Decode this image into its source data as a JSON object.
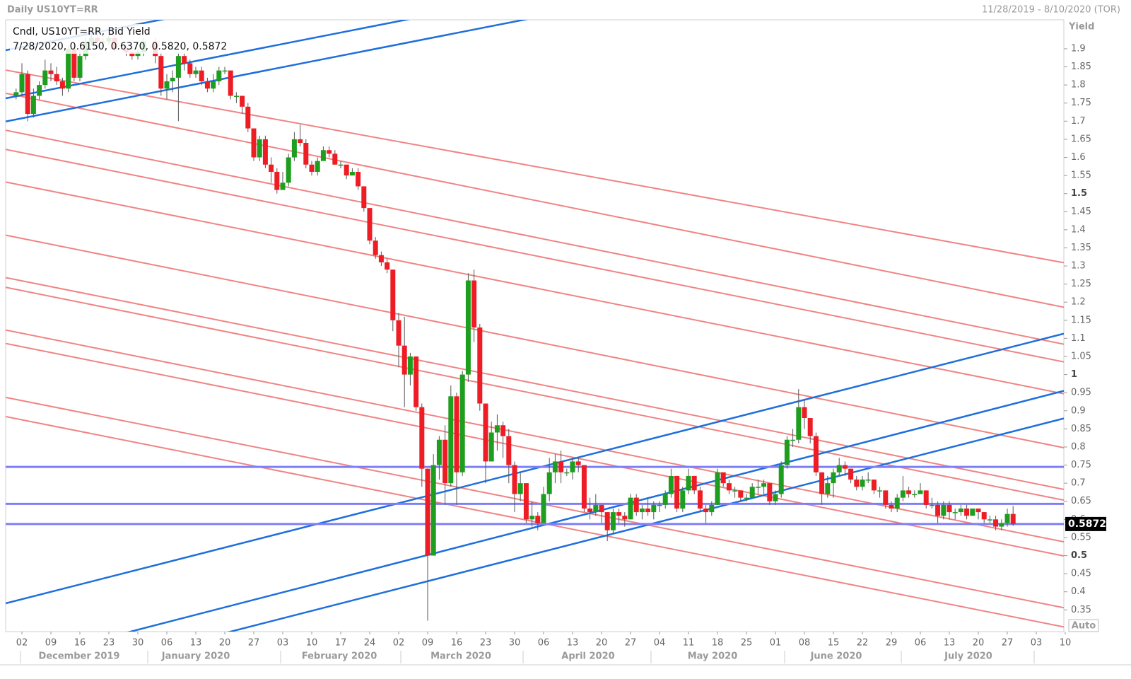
{
  "chart_data": {
    "type": "candlestick",
    "title": "Daily US10YT=RR",
    "date_range": "11/28/2019 - 8/10/2020 (TOR)",
    "legend_title": "Cndl, US10YT=RR, Bid Yield",
    "legend_values": "7/28/2020, 0.6150, 0.6370, 0.5820, 0.5872",
    "y_label": "Yield",
    "scale_mode": "Auto",
    "ylim": [
      0.29,
      1.98
    ],
    "yticks": [
      1.9,
      1.85,
      1.8,
      1.75,
      1.7,
      1.65,
      1.6,
      1.55,
      1.5,
      1.45,
      1.4,
      1.35,
      1.3,
      1.25,
      1.2,
      1.15,
      1.1,
      1.05,
      1,
      0.95,
      0.9,
      0.85,
      0.8,
      0.75,
      0.7,
      0.65,
      0.6,
      0.55,
      0.5,
      0.45,
      0.4,
      0.35
    ],
    "x_day_labels": [
      "02",
      "09",
      "16",
      "23",
      "30",
      "06",
      "13",
      "20",
      "27",
      "03",
      "10",
      "17",
      "24",
      "02",
      "09",
      "16",
      "23",
      "30",
      "06",
      "13",
      "20",
      "27",
      "04",
      "11",
      "18",
      "25",
      "01",
      "08",
      "15",
      "22",
      "29",
      "06",
      "13",
      "20",
      "27",
      "03",
      "10"
    ],
    "x_month_labels": [
      "December 2019",
      "January 2020",
      "February 2020",
      "March 2020",
      "April 2020",
      "May 2020",
      "June 2020",
      "July 2020"
    ],
    "up_color": "#1e9e1e",
    "down_color": "#ee1c25",
    "ohlc": [
      [
        1.77,
        1.79,
        1.76,
        1.78
      ],
      [
        1.78,
        1.86,
        1.77,
        1.83
      ],
      [
        1.83,
        1.84,
        1.7,
        1.72
      ],
      [
        1.72,
        1.79,
        1.71,
        1.77
      ],
      [
        1.77,
        1.81,
        1.76,
        1.8
      ],
      [
        1.8,
        1.87,
        1.79,
        1.84
      ],
      [
        1.84,
        1.86,
        1.81,
        1.83
      ],
      [
        1.83,
        1.85,
        1.8,
        1.81
      ],
      [
        1.81,
        1.82,
        1.77,
        1.79
      ],
      [
        1.79,
        1.91,
        1.78,
        1.9
      ],
      [
        1.9,
        1.91,
        1.81,
        1.82
      ],
      [
        1.82,
        1.9,
        1.81,
        1.88
      ],
      [
        1.88,
        1.93,
        1.87,
        1.92
      ],
      [
        1.92,
        1.94,
        1.91,
        1.93
      ],
      [
        1.93,
        1.94,
        1.9,
        1.92
      ],
      [
        1.92,
        1.93,
        1.9,
        1.92
      ],
      [
        1.92,
        1.94,
        1.91,
        1.93
      ],
      [
        1.93,
        1.94,
        1.89,
        1.9
      ],
      null,
      [
        1.9,
        1.91,
        1.88,
        1.89
      ],
      [
        1.89,
        1.91,
        1.87,
        1.88
      ],
      [
        1.88,
        1.9,
        1.87,
        1.89
      ],
      [
        1.89,
        1.93,
        1.88,
        1.92
      ],
      null,
      [
        1.92,
        1.93,
        1.86,
        1.88
      ],
      [
        1.88,
        1.89,
        1.77,
        1.79
      ],
      [
        1.79,
        1.83,
        1.76,
        1.81
      ],
      [
        1.81,
        1.84,
        1.78,
        1.82
      ],
      [
        1.82,
        1.89,
        1.7,
        1.88
      ],
      [
        1.88,
        1.89,
        1.84,
        1.86
      ],
      [
        1.86,
        1.87,
        1.82,
        1.83
      ],
      [
        1.83,
        1.85,
        1.82,
        1.84
      ],
      [
        1.84,
        1.85,
        1.8,
        1.81
      ],
      [
        1.81,
        1.82,
        1.78,
        1.79
      ],
      [
        1.79,
        1.83,
        1.78,
        1.81
      ],
      [
        1.81,
        1.85,
        1.8,
        1.84
      ],
      [
        1.84,
        1.85,
        1.83,
        1.84
      ],
      [
        1.84,
        1.84,
        1.76,
        1.77
      ],
      [
        1.77,
        1.78,
        1.75,
        1.77
      ],
      [
        1.77,
        1.77,
        1.72,
        1.74
      ],
      [
        1.74,
        1.75,
        1.67,
        1.68
      ],
      [
        1.68,
        1.68,
        1.59,
        1.6
      ],
      [
        1.6,
        1.66,
        1.59,
        1.65
      ],
      [
        1.65,
        1.66,
        1.57,
        1.58
      ],
      [
        1.58,
        1.6,
        1.53,
        1.56
      ],
      [
        1.56,
        1.57,
        1.5,
        1.51
      ],
      [
        1.51,
        1.56,
        1.51,
        1.53
      ],
      [
        1.53,
        1.61,
        1.52,
        1.6
      ],
      [
        1.6,
        1.67,
        1.59,
        1.65
      ],
      [
        1.65,
        1.69,
        1.63,
        1.64
      ],
      [
        1.64,
        1.65,
        1.57,
        1.58
      ],
      [
        1.58,
        1.59,
        1.55,
        1.56
      ],
      [
        1.56,
        1.6,
        1.55,
        1.59
      ],
      [
        1.59,
        1.63,
        1.59,
        1.62
      ],
      [
        1.62,
        1.63,
        1.6,
        1.61
      ],
      [
        1.61,
        1.62,
        1.58,
        1.58
      ],
      [
        1.58,
        1.59,
        1.57,
        1.58
      ],
      [
        1.58,
        1.58,
        1.54,
        1.55
      ],
      [
        1.55,
        1.57,
        1.55,
        1.56
      ],
      [
        1.56,
        1.57,
        1.51,
        1.52
      ],
      [
        1.52,
        1.52,
        1.45,
        1.46
      ],
      [
        1.46,
        1.46,
        1.36,
        1.37
      ],
      [
        1.37,
        1.38,
        1.32,
        1.33
      ],
      [
        1.33,
        1.34,
        1.3,
        1.31
      ],
      [
        1.31,
        1.32,
        1.28,
        1.29
      ],
      [
        1.29,
        1.29,
        1.12,
        1.15
      ],
      [
        1.15,
        1.17,
        1.02,
        1.08
      ],
      [
        1.08,
        1.16,
        0.91,
        1.0
      ],
      [
        1.0,
        1.06,
        0.97,
        1.05
      ],
      [
        1.05,
        1.05,
        0.9,
        0.91
      ],
      [
        0.91,
        0.92,
        0.69,
        0.74
      ],
      [
        0.74,
        0.74,
        0.32,
        0.5
      ],
      [
        0.5,
        0.78,
        0.56,
        0.75
      ],
      [
        0.75,
        0.83,
        0.71,
        0.82
      ],
      [
        0.82,
        0.86,
        0.64,
        0.7
      ],
      [
        0.7,
        0.97,
        0.69,
        0.94
      ],
      [
        0.94,
        0.95,
        0.64,
        0.73
      ],
      [
        0.73,
        1.01,
        0.72,
        1.0
      ],
      [
        1.0,
        1.28,
        0.98,
        1.26
      ],
      [
        1.26,
        1.29,
        1.09,
        1.13
      ],
      [
        1.13,
        1.14,
        0.9,
        0.92
      ],
      [
        0.92,
        0.92,
        0.7,
        0.76
      ],
      [
        0.76,
        0.87,
        0.76,
        0.84
      ],
      [
        0.84,
        0.89,
        0.79,
        0.86
      ],
      [
        0.86,
        0.87,
        0.77,
        0.83
      ],
      [
        0.83,
        0.85,
        0.7,
        0.75
      ],
      [
        0.75,
        0.76,
        0.62,
        0.67
      ],
      [
        0.67,
        0.73,
        0.65,
        0.7
      ],
      [
        0.7,
        0.7,
        0.59,
        0.6
      ],
      [
        0.6,
        0.65,
        0.58,
        0.61
      ],
      [
        0.61,
        0.62,
        0.57,
        0.59
      ],
      [
        0.59,
        0.69,
        0.59,
        0.67
      ],
      [
        0.67,
        0.77,
        0.65,
        0.73
      ],
      [
        0.73,
        0.78,
        0.7,
        0.76
      ],
      [
        0.76,
        0.79,
        0.7,
        0.73
      ],
      [
        0.73,
        0.74,
        0.72,
        0.73
      ],
      [
        0.73,
        0.77,
        0.71,
        0.76
      ],
      [
        0.76,
        0.77,
        0.73,
        0.75
      ],
      [
        0.75,
        0.75,
        0.62,
        0.63
      ],
      [
        0.63,
        0.66,
        0.6,
        0.62
      ],
      [
        0.62,
        0.67,
        0.61,
        0.64
      ],
      [
        0.64,
        0.64,
        0.59,
        0.62
      ],
      [
        0.62,
        0.62,
        0.54,
        0.57
      ],
      [
        0.57,
        0.63,
        0.56,
        0.62
      ],
      [
        0.62,
        0.63,
        0.59,
        0.61
      ],
      [
        0.61,
        0.62,
        0.58,
        0.6
      ],
      [
        0.6,
        0.67,
        0.6,
        0.66
      ],
      [
        0.66,
        0.67,
        0.61,
        0.62
      ],
      [
        0.62,
        0.64,
        0.6,
        0.63
      ],
      [
        0.63,
        0.66,
        0.61,
        0.62
      ],
      [
        0.62,
        0.65,
        0.6,
        0.64
      ],
      [
        0.64,
        0.65,
        0.62,
        0.64
      ],
      [
        0.64,
        0.68,
        0.63,
        0.67
      ],
      [
        0.67,
        0.74,
        0.66,
        0.72
      ],
      [
        0.72,
        0.72,
        0.62,
        0.63
      ],
      [
        0.63,
        0.69,
        0.62,
        0.68
      ],
      [
        0.68,
        0.74,
        0.67,
        0.72
      ],
      [
        0.72,
        0.72,
        0.67,
        0.68
      ],
      [
        0.68,
        0.69,
        0.62,
        0.63
      ],
      [
        0.63,
        0.64,
        0.59,
        0.62
      ],
      [
        0.62,
        0.65,
        0.61,
        0.64
      ],
      [
        0.64,
        0.74,
        0.64,
        0.73
      ],
      [
        0.73,
        0.73,
        0.69,
        0.7
      ],
      [
        0.7,
        0.71,
        0.67,
        0.68
      ],
      [
        0.68,
        0.69,
        0.66,
        0.68
      ],
      [
        0.68,
        0.68,
        0.65,
        0.66
      ],
      [
        0.66,
        0.67,
        0.65,
        0.66
      ],
      [
        0.66,
        0.7,
        0.66,
        0.69
      ],
      [
        0.69,
        0.71,
        0.67,
        0.69
      ],
      [
        0.69,
        0.71,
        0.67,
        0.7
      ],
      [
        0.7,
        0.7,
        0.64,
        0.65
      ],
      [
        0.65,
        0.68,
        0.64,
        0.67
      ],
      [
        0.67,
        0.76,
        0.66,
        0.75
      ],
      [
        0.75,
        0.83,
        0.74,
        0.82
      ],
      [
        0.82,
        0.85,
        0.8,
        0.82
      ],
      [
        0.82,
        0.96,
        0.81,
        0.91
      ],
      [
        0.91,
        0.93,
        0.85,
        0.88
      ],
      [
        0.88,
        0.88,
        0.81,
        0.83
      ],
      [
        0.83,
        0.84,
        0.72,
        0.73
      ],
      [
        0.73,
        0.73,
        0.64,
        0.67
      ],
      [
        0.67,
        0.72,
        0.66,
        0.7
      ],
      [
        0.7,
        0.74,
        0.66,
        0.73
      ],
      [
        0.73,
        0.77,
        0.72,
        0.75
      ],
      [
        0.75,
        0.76,
        0.72,
        0.74
      ],
      [
        0.74,
        0.74,
        0.7,
        0.71
      ],
      [
        0.71,
        0.72,
        0.68,
        0.69
      ],
      [
        0.69,
        0.72,
        0.68,
        0.71
      ],
      [
        0.71,
        0.73,
        0.7,
        0.71
      ],
      [
        0.71,
        0.71,
        0.67,
        0.68
      ],
      [
        0.68,
        0.69,
        0.66,
        0.68
      ],
      [
        0.68,
        0.68,
        0.63,
        0.64
      ],
      [
        0.64,
        0.65,
        0.62,
        0.63
      ],
      [
        0.63,
        0.67,
        0.62,
        0.66
      ],
      [
        0.66,
        0.72,
        0.65,
        0.68
      ],
      [
        0.68,
        0.69,
        0.66,
        0.67
      ],
      [
        0.67,
        0.68,
        0.66,
        0.67
      ],
      [
        0.67,
        0.7,
        0.67,
        0.68
      ],
      [
        0.68,
        0.68,
        0.63,
        0.64
      ],
      [
        0.64,
        0.66,
        0.63,
        0.64
      ],
      [
        0.64,
        0.65,
        0.59,
        0.61
      ],
      [
        0.61,
        0.65,
        0.6,
        0.64
      ],
      [
        0.64,
        0.65,
        0.6,
        0.62
      ],
      [
        0.62,
        0.63,
        0.6,
        0.62
      ],
      [
        0.62,
        0.64,
        0.61,
        0.63
      ],
      [
        0.63,
        0.64,
        0.6,
        0.61
      ],
      [
        0.61,
        0.63,
        0.61,
        0.63
      ],
      [
        0.63,
        0.63,
        0.6,
        0.62
      ],
      [
        0.62,
        0.62,
        0.59,
        0.6
      ],
      [
        0.6,
        0.61,
        0.59,
        0.6
      ],
      [
        0.6,
        0.61,
        0.57,
        0.58
      ],
      [
        0.58,
        0.6,
        0.57,
        0.59
      ],
      [
        0.59,
        0.63,
        0.58,
        0.615
      ],
      [
        0.615,
        0.637,
        0.582,
        0.5872
      ]
    ],
    "last_price": {
      "value": 0.5872,
      "label": "0.5872"
    },
    "hlines": [
      {
        "color": "#7f7ff5",
        "value": 0.745
      },
      {
        "color": "#7f7ff5",
        "value": 0.643
      }
    ],
    "trendlines": [
      {
        "color": "#f08484",
        "y_start": 1.841,
        "y_end": 1.309
      },
      {
        "color": "#f08484",
        "y_start": 1.777,
        "y_end": 1.186
      },
      {
        "color": "#f08484",
        "y_start": 1.675,
        "y_end": 1.084
      },
      {
        "color": "#f08484",
        "y_start": 1.622,
        "y_end": 1.035
      },
      {
        "color": "#f08484",
        "y_start": 1.532,
        "y_end": 0.947
      },
      {
        "color": "#f08484",
        "y_start": 1.385,
        "y_end": 0.798
      },
      {
        "color": "#f08484",
        "y_start": 1.268,
        "y_end": 0.683
      },
      {
        "color": "#f08484",
        "y_start": 1.241,
        "y_end": 0.653
      },
      {
        "color": "#f08484",
        "y_start": 1.123,
        "y_end": 0.538
      },
      {
        "color": "#f08484",
        "y_start": 1.086,
        "y_end": 0.499
      },
      {
        "color": "#f08484",
        "y_start": 0.937,
        "y_end": 0.356
      },
      {
        "color": "#f08484",
        "y_start": 0.884,
        "y_end": 0.303
      },
      {
        "color": "#1e6fdc",
        "y_start": 1.896,
        "y_end": 2.47
      },
      {
        "color": "#1e6fdc",
        "y_start": 1.763,
        "y_end": 2.337
      },
      {
        "color": "#1e6fdc",
        "y_start": 1.699,
        "y_end": 2.273
      },
      {
        "color": "#1e6fdc",
        "y_start": 0.368,
        "y_end": 1.113
      },
      {
        "color": "#1e6fdc",
        "y_start": 0.201,
        "y_end": 0.955
      },
      {
        "color": "#1e6fdc",
        "y_start": 0.131,
        "y_end": 0.879
      }
    ]
  }
}
